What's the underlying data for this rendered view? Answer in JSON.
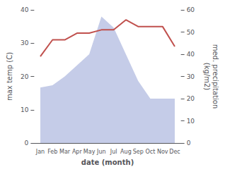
{
  "chart_data": {
    "type": "line",
    "categories": [
      "Jan",
      "Feb",
      "Mar",
      "Apr",
      "May",
      "Jun",
      "Jul",
      "Aug",
      "Sep",
      "Oct",
      "Nov",
      "Dec"
    ],
    "xlabel": "date (month)",
    "ylabel": "max temp (C)",
    "y2label": "med. precipitation\n(kg/m2)",
    "series": [
      {
        "type": "area",
        "axis": "y2",
        "color": "#c5cce8",
        "values": [
          25,
          26,
          30,
          35,
          40,
          57,
          52,
          40,
          28,
          20,
          20,
          20
        ]
      },
      {
        "type": "line",
        "color": "#c0504d",
        "values": [
          26,
          31,
          31,
          33,
          33,
          34,
          34,
          37,
          35,
          35,
          35,
          29
        ]
      }
    ],
    "ylim": [
      0,
      40
    ],
    "yticks": [
      0,
      10,
      20,
      30,
      40
    ],
    "y2lim": [
      0,
      60
    ],
    "y2ticks": [
      0,
      10,
      20,
      30,
      40,
      50,
      60
    ],
    "grid": false
  }
}
